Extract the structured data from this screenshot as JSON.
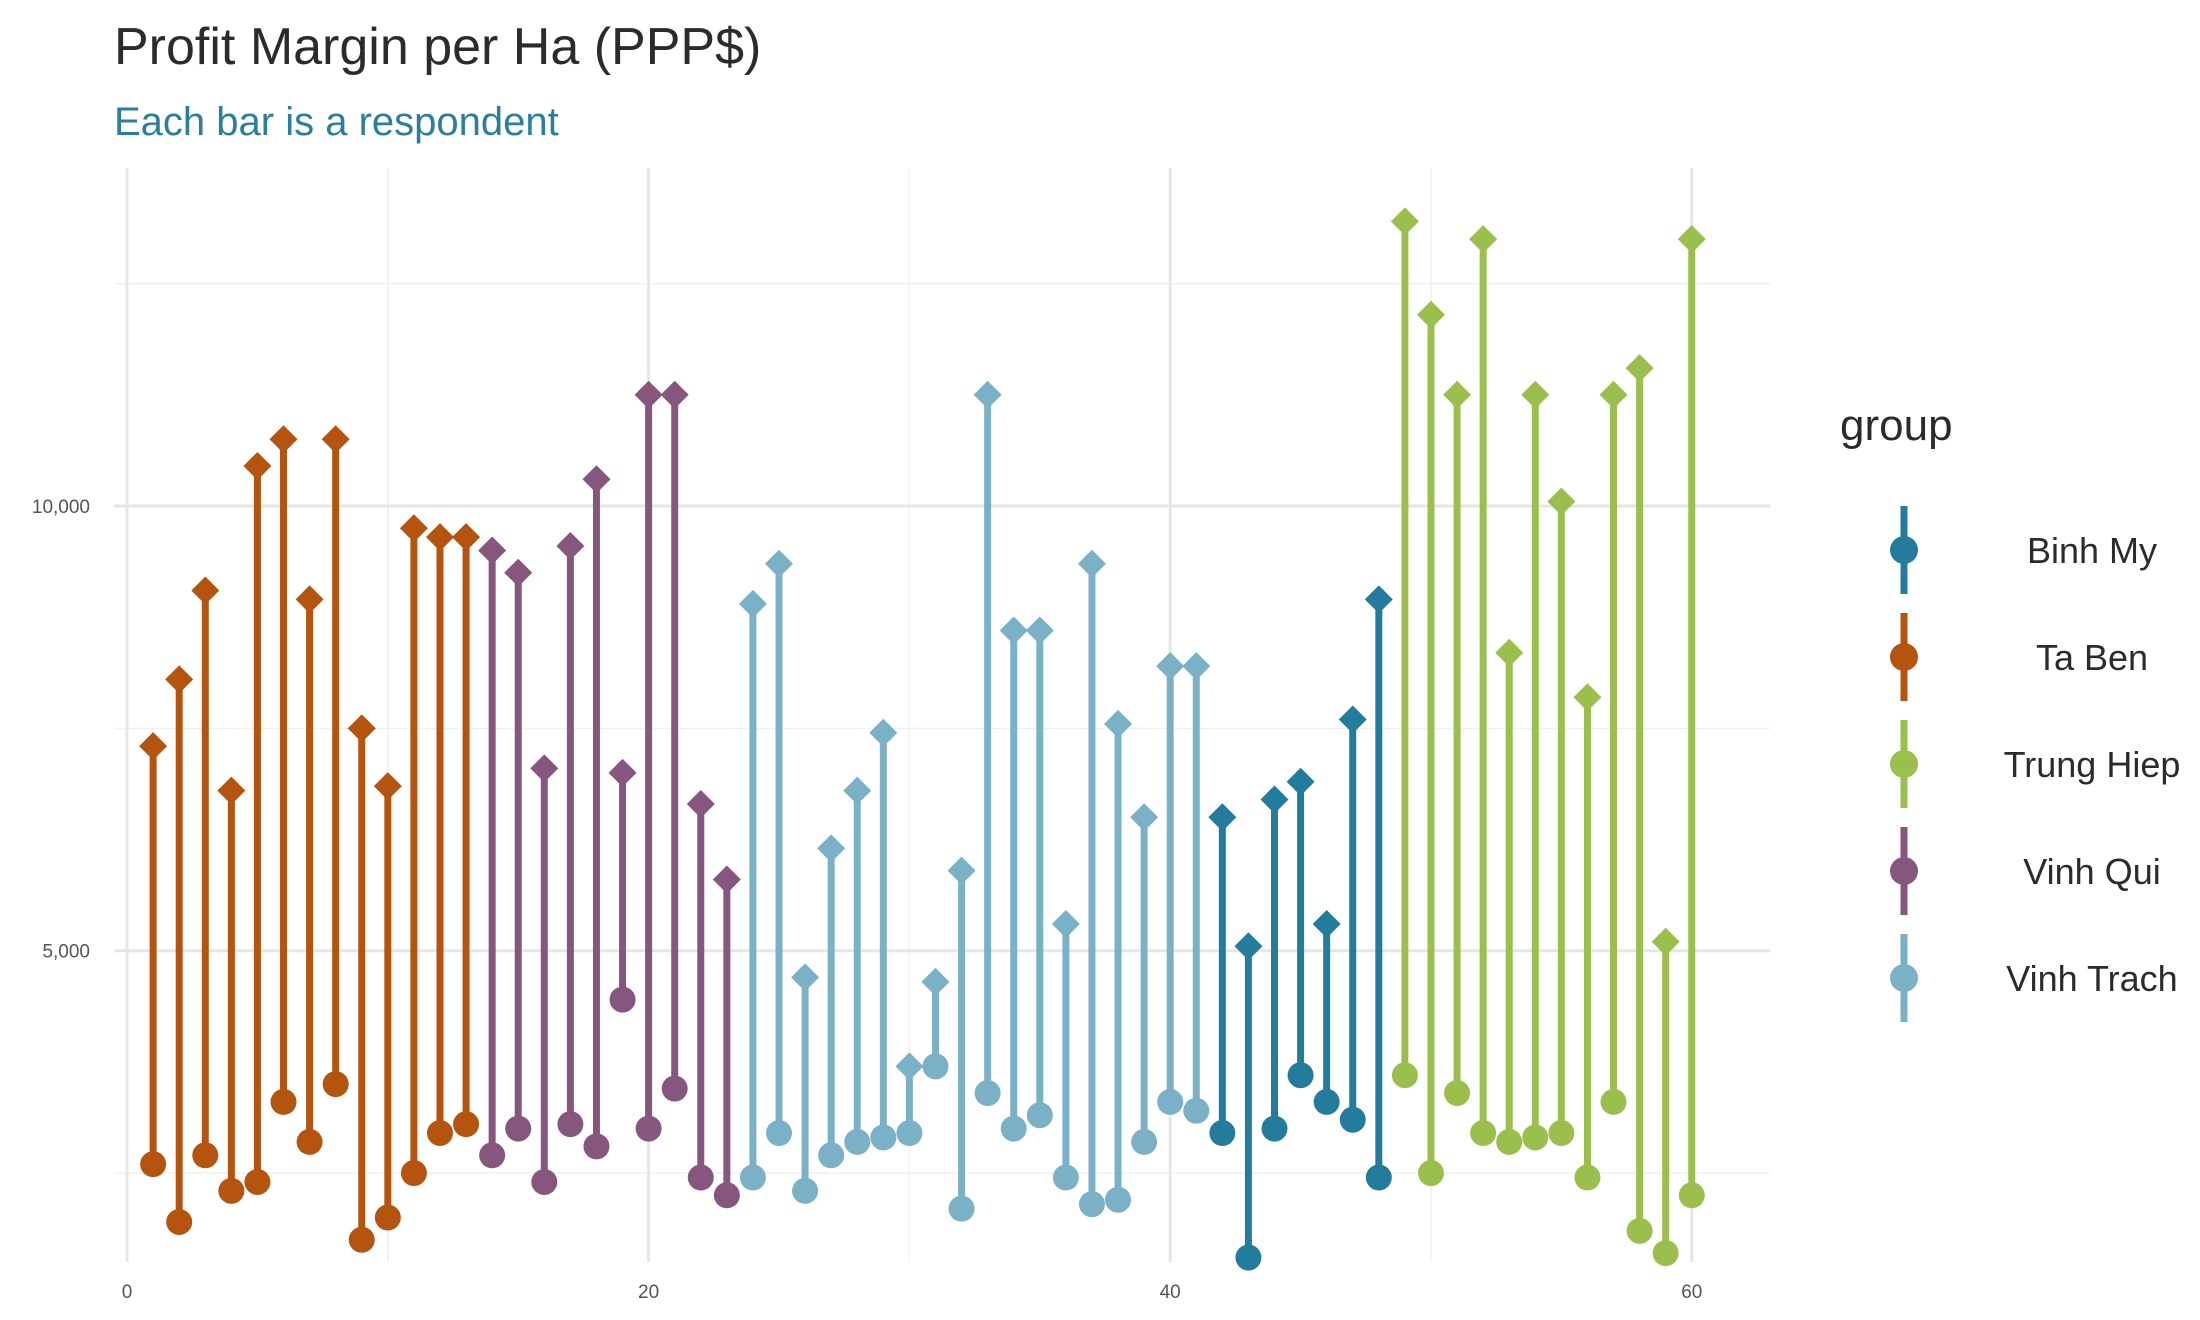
{
  "chart_data": {
    "type": "dumbbell",
    "title": "Profit Margin per Ha (PPP$)",
    "subtitle": "Each bar is a respondent",
    "xlabel": "",
    "ylabel": "",
    "xlim": [
      -0.5,
      63
    ],
    "ylim": [
      1500,
      13800
    ],
    "x_ticks": [
      0,
      20,
      40,
      60
    ],
    "x_tick_labels": [
      "0",
      "20",
      "40",
      "60"
    ],
    "y_ticks": [
      5000,
      10000
    ],
    "y_tick_labels": [
      "5,000",
      "10,000"
    ],
    "grid": true,
    "legend": {
      "title": "group",
      "position": "right"
    },
    "groups": [
      {
        "name": "Binh My",
        "color": "#247c9c"
      },
      {
        "name": "Ta Ben",
        "color": "#b5540e"
      },
      {
        "name": "Trung Hiep",
        "color": "#9bbf4d"
      },
      {
        "name": "Vinh Qui",
        "color": "#87567f"
      },
      {
        "name": "Vinh Trach",
        "color": "#7bb1c6"
      }
    ],
    "respondents": [
      {
        "x": 1,
        "low": 2600,
        "high": 7300,
        "group": "Ta Ben"
      },
      {
        "x": 2,
        "low": 1950,
        "high": 8050,
        "group": "Ta Ben"
      },
      {
        "x": 3,
        "low": 2700,
        "high": 9050,
        "group": "Ta Ben"
      },
      {
        "x": 4,
        "low": 2300,
        "high": 6800,
        "group": "Ta Ben"
      },
      {
        "x": 5,
        "low": 2400,
        "high": 10450,
        "group": "Ta Ben"
      },
      {
        "x": 6,
        "low": 3300,
        "high": 10750,
        "group": "Ta Ben"
      },
      {
        "x": 7,
        "low": 2850,
        "high": 8950,
        "group": "Ta Ben"
      },
      {
        "x": 8,
        "low": 3500,
        "high": 10750,
        "group": "Ta Ben"
      },
      {
        "x": 9,
        "low": 1750,
        "high": 7500,
        "group": "Ta Ben"
      },
      {
        "x": 10,
        "low": 2000,
        "high": 6850,
        "group": "Ta Ben"
      },
      {
        "x": 11,
        "low": 2500,
        "high": 9750,
        "group": "Ta Ben"
      },
      {
        "x": 12,
        "low": 2950,
        "high": 9650,
        "group": "Ta Ben"
      },
      {
        "x": 13,
        "low": 3050,
        "high": 9650,
        "group": "Ta Ben"
      },
      {
        "x": 14,
        "low": 2700,
        "high": 9500,
        "group": "Vinh Qui"
      },
      {
        "x": 15,
        "low": 3000,
        "high": 9250,
        "group": "Vinh Qui"
      },
      {
        "x": 16,
        "low": 2400,
        "high": 7050,
        "group": "Vinh Qui"
      },
      {
        "x": 17,
        "low": 3050,
        "high": 9550,
        "group": "Vinh Qui"
      },
      {
        "x": 18,
        "low": 2800,
        "high": 10300,
        "group": "Vinh Qui"
      },
      {
        "x": 19,
        "low": 4450,
        "high": 7000,
        "group": "Vinh Qui"
      },
      {
        "x": 20,
        "low": 3000,
        "high": 11250,
        "group": "Vinh Qui"
      },
      {
        "x": 21,
        "low": 3450,
        "high": 11250,
        "group": "Vinh Qui"
      },
      {
        "x": 22,
        "low": 2450,
        "high": 6650,
        "group": "Vinh Qui"
      },
      {
        "x": 23,
        "low": 2250,
        "high": 5800,
        "group": "Vinh Qui"
      },
      {
        "x": 24,
        "low": 2450,
        "high": 8900,
        "group": "Vinh Trach"
      },
      {
        "x": 25,
        "low": 2950,
        "high": 9350,
        "group": "Vinh Trach"
      },
      {
        "x": 26,
        "low": 2300,
        "high": 4700,
        "group": "Vinh Trach"
      },
      {
        "x": 27,
        "low": 2700,
        "high": 6150,
        "group": "Vinh Trach"
      },
      {
        "x": 28,
        "low": 2850,
        "high": 6800,
        "group": "Vinh Trach"
      },
      {
        "x": 29,
        "low": 2900,
        "high": 7450,
        "group": "Vinh Trach"
      },
      {
        "x": 30,
        "low": 2950,
        "high": 3700,
        "group": "Vinh Trach"
      },
      {
        "x": 31,
        "low": 3700,
        "high": 4650,
        "group": "Vinh Trach"
      },
      {
        "x": 32,
        "low": 2100,
        "high": 5900,
        "group": "Vinh Trach"
      },
      {
        "x": 33,
        "low": 3400,
        "high": 11250,
        "group": "Vinh Trach"
      },
      {
        "x": 34,
        "low": 3000,
        "high": 8600,
        "group": "Vinh Trach"
      },
      {
        "x": 35,
        "low": 3150,
        "high": 8600,
        "group": "Vinh Trach"
      },
      {
        "x": 36,
        "low": 2450,
        "high": 5300,
        "group": "Vinh Trach"
      },
      {
        "x": 37,
        "low": 2150,
        "high": 9350,
        "group": "Vinh Trach"
      },
      {
        "x": 38,
        "low": 2200,
        "high": 7550,
        "group": "Vinh Trach"
      },
      {
        "x": 39,
        "low": 2850,
        "high": 6500,
        "group": "Vinh Trach"
      },
      {
        "x": 40,
        "low": 3300,
        "high": 8200,
        "group": "Vinh Trach"
      },
      {
        "x": 41,
        "low": 3200,
        "high": 8200,
        "group": "Vinh Trach"
      },
      {
        "x": 42,
        "low": 2950,
        "high": 6500,
        "group": "Binh My"
      },
      {
        "x": 43,
        "low": 1550,
        "high": 5050,
        "group": "Binh My"
      },
      {
        "x": 44,
        "low": 3000,
        "high": 6700,
        "group": "Binh My"
      },
      {
        "x": 45,
        "low": 3600,
        "high": 6900,
        "group": "Binh My"
      },
      {
        "x": 46,
        "low": 3300,
        "high": 5300,
        "group": "Binh My"
      },
      {
        "x": 47,
        "low": 3100,
        "high": 7600,
        "group": "Binh My"
      },
      {
        "x": 48,
        "low": 2450,
        "high": 8950,
        "group": "Binh My"
      },
      {
        "x": 49,
        "low": 3600,
        "high": 13200,
        "group": "Trung Hiep"
      },
      {
        "x": 50,
        "low": 2500,
        "high": 12150,
        "group": "Trung Hiep"
      },
      {
        "x": 51,
        "low": 3400,
        "high": 11250,
        "group": "Trung Hiep"
      },
      {
        "x": 52,
        "low": 2950,
        "high": 13000,
        "group": "Trung Hiep"
      },
      {
        "x": 53,
        "low": 2850,
        "high": 8350,
        "group": "Trung Hiep"
      },
      {
        "x": 54,
        "low": 2900,
        "high": 11250,
        "group": "Trung Hiep"
      },
      {
        "x": 55,
        "low": 2950,
        "high": 10050,
        "group": "Trung Hiep"
      },
      {
        "x": 56,
        "low": 2450,
        "high": 7850,
        "group": "Trung Hiep"
      },
      {
        "x": 57,
        "low": 3300,
        "high": 11250,
        "group": "Trung Hiep"
      },
      {
        "x": 58,
        "low": 1850,
        "high": 11550,
        "group": "Trung Hiep"
      },
      {
        "x": 59,
        "low": 1600,
        "high": 5100,
        "group": "Trung Hiep"
      },
      {
        "x": 60,
        "low": 2250,
        "high": 13000,
        "group": "Trung Hiep"
      }
    ]
  }
}
